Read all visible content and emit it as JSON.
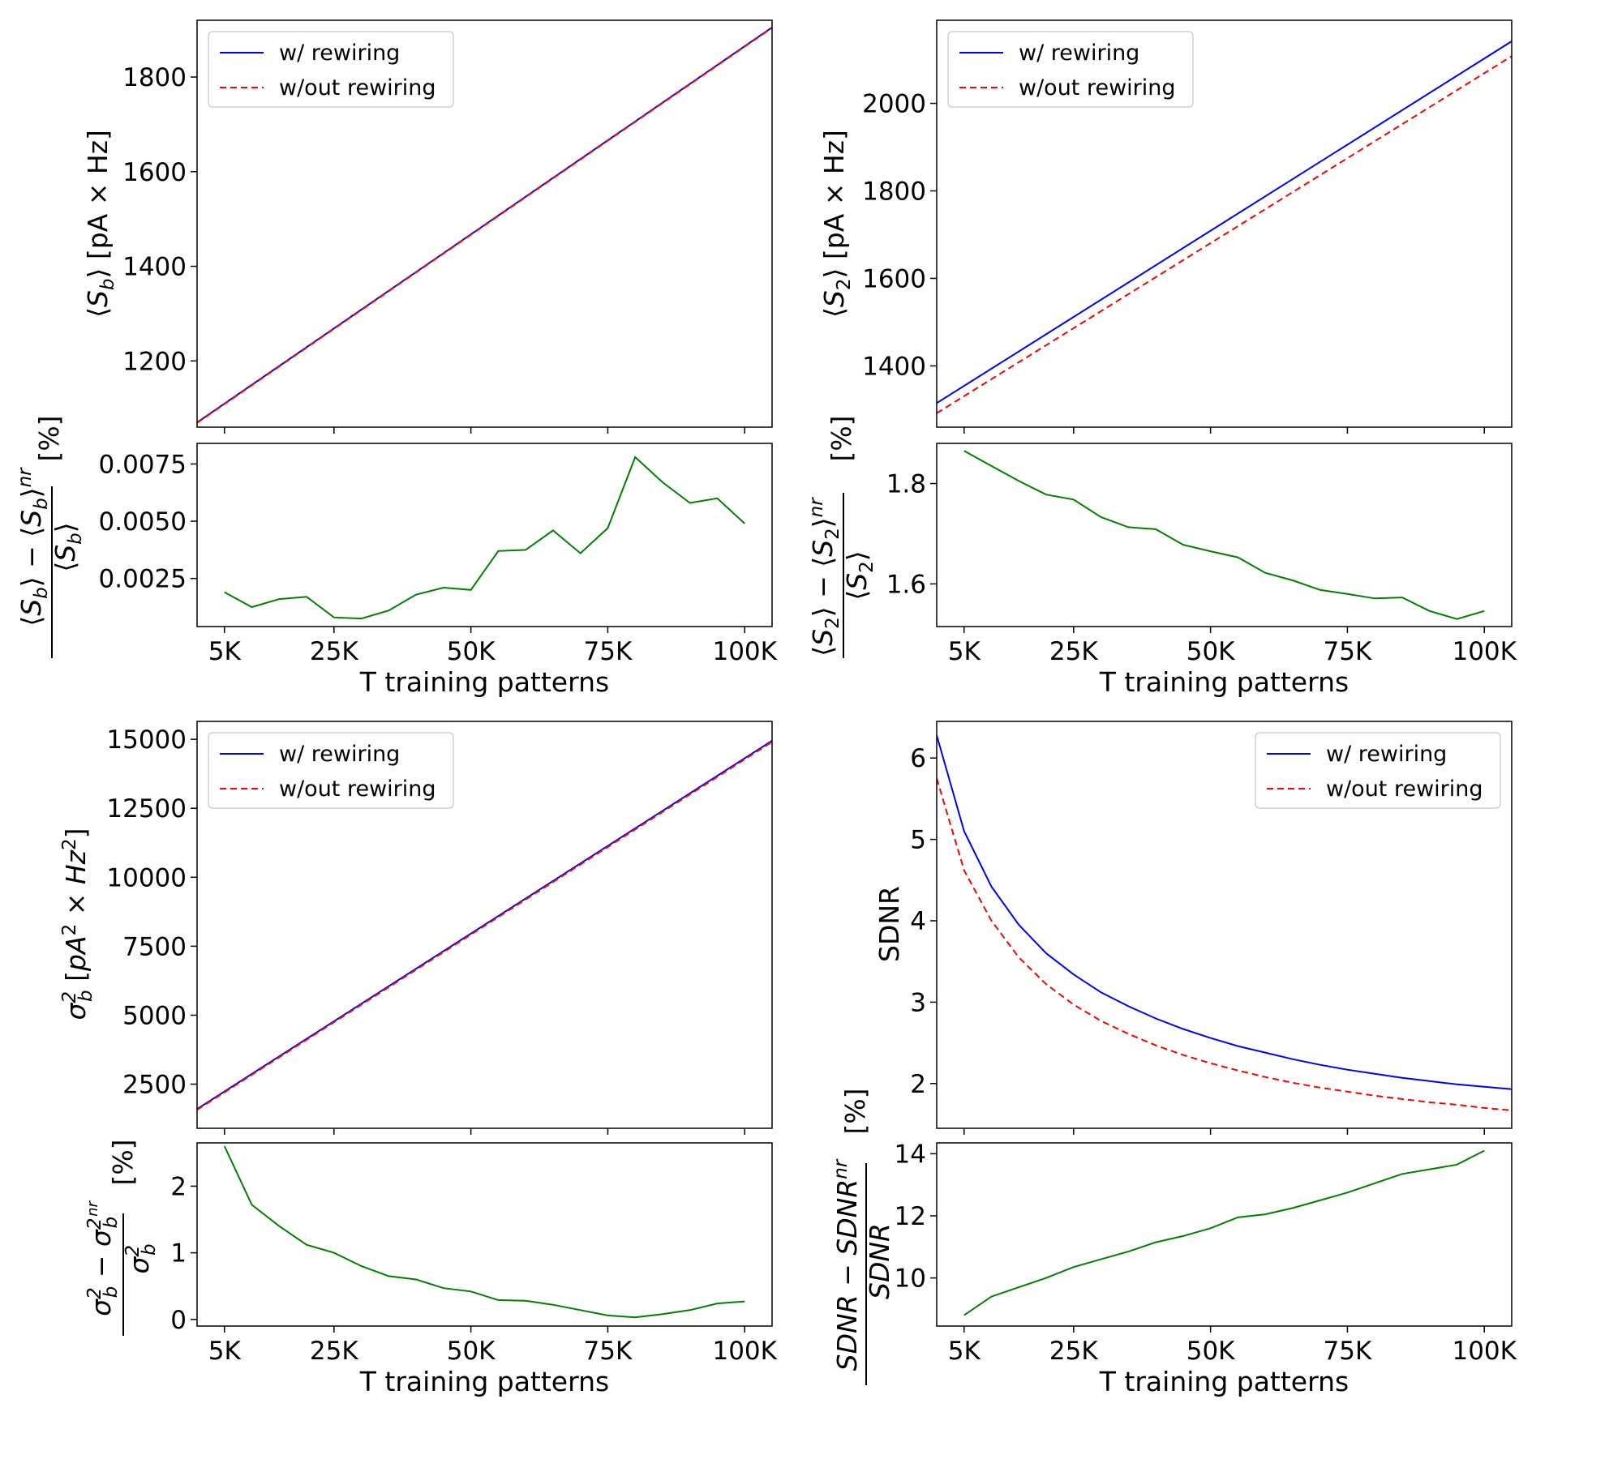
{
  "colors": {
    "rewiring": "#0000ff",
    "no_rewiring": "#ff0000",
    "diff": "#008000"
  },
  "chart_data": [
    {
      "id": "sb-top",
      "type": "line",
      "ylabel": "⟨S_b⟩ [pA × Hz]",
      "xlim": [
        0,
        105000
      ],
      "ylim": [
        1060,
        1920
      ],
      "yticks": [
        1200,
        1400,
        1600,
        1800
      ],
      "ytick_labels": [
        "1200",
        "1400",
        "1600",
        "1800"
      ],
      "legend": {
        "position": "top-left",
        "entries": [
          "w/ rewiring",
          "w/out rewiring"
        ]
      },
      "series": [
        {
          "name": "w/ rewiring",
          "style": "solid",
          "x": [
            0,
            105000
          ],
          "y": [
            1070,
            1905
          ]
        },
        {
          "name": "w/out rewiring",
          "style": "dashed",
          "x": [
            0,
            105000
          ],
          "y": [
            1069,
            1904
          ]
        }
      ]
    },
    {
      "id": "sb-bottom",
      "type": "line",
      "ylabel": "(⟨S_b⟩ − ⟨S_b⟩^nr) / ⟨S_b⟩   [%]",
      "xlabel": "T training patterns",
      "xlim": [
        0,
        105000
      ],
      "ylim": [
        0.0004,
        0.0084
      ],
      "yticks": [
        0.0025,
        0.005,
        0.0075
      ],
      "ytick_labels": [
        "0.0025",
        "0.0050",
        "0.0075"
      ],
      "xticks": [
        5000,
        25000,
        50000,
        75000,
        100000
      ],
      "xtick_labels": [
        "5K",
        "25K",
        "50K",
        "75K",
        "100K"
      ],
      "series": [
        {
          "name": "difference",
          "style": "solid",
          "x": [
            5000,
            10000,
            15000,
            20000,
            25000,
            30000,
            35000,
            40000,
            45000,
            50000,
            55000,
            60000,
            65000,
            70000,
            75000,
            80000,
            85000,
            90000,
            95000,
            100000
          ],
          "y": [
            0.0019,
            0.00125,
            0.0016,
            0.0017,
            0.0008,
            0.00075,
            0.0011,
            0.0018,
            0.0021,
            0.002,
            0.0037,
            0.00375,
            0.0046,
            0.0036,
            0.0047,
            0.0078,
            0.0067,
            0.0058,
            0.006,
            0.0049
          ]
        }
      ]
    },
    {
      "id": "s2-top",
      "type": "line",
      "ylabel": "⟨S_2⟩ [pA × Hz]",
      "xlim": [
        0,
        105000
      ],
      "ylim": [
        1260,
        2190
      ],
      "yticks": [
        1400,
        1600,
        1800,
        2000
      ],
      "ytick_labels": [
        "1400",
        "1600",
        "1800",
        "2000"
      ],
      "legend": {
        "position": "top-left",
        "entries": [
          "w/ rewiring",
          "w/out rewiring"
        ]
      },
      "series": [
        {
          "name": "w/ rewiring",
          "style": "solid",
          "x": [
            0,
            105000
          ],
          "y": [
            1315,
            2142
          ]
        },
        {
          "name": "w/out rewiring",
          "style": "dashed",
          "x": [
            0,
            105000
          ],
          "y": [
            1292,
            2108
          ]
        }
      ]
    },
    {
      "id": "s2-bottom",
      "type": "line",
      "ylabel": "(⟨S_2⟩ − ⟨S_2⟩^nr) / ⟨S_2⟩   [%]",
      "xlabel": "T training patterns",
      "xlim": [
        0,
        105000
      ],
      "ylim": [
        1.515,
        1.88
      ],
      "yticks": [
        1.6,
        1.8
      ],
      "ytick_labels": [
        "1.6",
        "1.8"
      ],
      "xticks": [
        5000,
        25000,
        50000,
        75000,
        100000
      ],
      "xtick_labels": [
        "5K",
        "25K",
        "50K",
        "75K",
        "100K"
      ],
      "series": [
        {
          "name": "difference",
          "style": "solid",
          "x": [
            5000,
            10000,
            15000,
            20000,
            25000,
            30000,
            35000,
            40000,
            45000,
            50000,
            55000,
            60000,
            65000,
            70000,
            75000,
            80000,
            85000,
            90000,
            95000,
            100000
          ],
          "y": [
            1.865,
            1.835,
            1.805,
            1.778,
            1.768,
            1.733,
            1.713,
            1.709,
            1.678,
            1.665,
            1.653,
            1.622,
            1.607,
            1.588,
            1.58,
            1.571,
            1.573,
            1.546,
            1.53,
            1.546
          ]
        }
      ]
    },
    {
      "id": "var-top",
      "type": "line",
      "ylabel": "σ_b² [pA² × Hz²]",
      "xlim": [
        0,
        105000
      ],
      "ylim": [
        900,
        15650
      ],
      "yticks": [
        2500,
        5000,
        7500,
        10000,
        12500,
        15000
      ],
      "ytick_labels": [
        "2500",
        "5000",
        "7500",
        "10000",
        "12500",
        "15000"
      ],
      "legend": {
        "position": "top-left",
        "entries": [
          "w/ rewiring",
          "w/out rewiring"
        ]
      },
      "series": [
        {
          "name": "w/ rewiring",
          "style": "solid",
          "x": [
            0,
            105000
          ],
          "y": [
            1600,
            14950
          ]
        },
        {
          "name": "w/out rewiring",
          "style": "dashed",
          "x": [
            0,
            105000
          ],
          "y": [
            1570,
            14910
          ]
        }
      ]
    },
    {
      "id": "var-bottom",
      "type": "line",
      "ylabel": "(σ_b² − σ_b²^nr) / σ_b²   [%]",
      "xlabel": "T training patterns",
      "xlim": [
        0,
        105000
      ],
      "ylim": [
        -0.1,
        2.65
      ],
      "yticks": [
        0,
        1,
        2
      ],
      "ytick_labels": [
        "0",
        "1",
        "2"
      ],
      "xticks": [
        5000,
        25000,
        50000,
        75000,
        100000
      ],
      "xtick_labels": [
        "5K",
        "25K",
        "50K",
        "75K",
        "100K"
      ],
      "series": [
        {
          "name": "difference",
          "style": "solid",
          "x": [
            5000,
            10000,
            15000,
            20000,
            25000,
            30000,
            35000,
            40000,
            45000,
            50000,
            55000,
            60000,
            65000,
            70000,
            75000,
            80000,
            85000,
            90000,
            95000,
            100000
          ],
          "y": [
            2.6,
            1.72,
            1.4,
            1.12,
            1.0,
            0.8,
            0.65,
            0.6,
            0.47,
            0.42,
            0.29,
            0.28,
            0.22,
            0.14,
            0.06,
            0.03,
            0.08,
            0.14,
            0.24,
            0.27
          ]
        }
      ]
    },
    {
      "id": "sdnr-top",
      "type": "line",
      "ylabel": "SDNR",
      "xlim": [
        0,
        105000
      ],
      "ylim": [
        1.45,
        6.45
      ],
      "yticks": [
        2,
        3,
        4,
        5,
        6
      ],
      "ytick_labels": [
        "2",
        "3",
        "4",
        "5",
        "6"
      ],
      "legend": {
        "position": "top-right",
        "entries": [
          "w/ rewiring",
          "w/out rewiring"
        ]
      },
      "series": [
        {
          "name": "w/ rewiring",
          "style": "solid",
          "x": [
            0,
            5000,
            10000,
            15000,
            20000,
            25000,
            30000,
            35000,
            40000,
            45000,
            50000,
            55000,
            60000,
            65000,
            70000,
            75000,
            80000,
            85000,
            90000,
            95000,
            100000,
            105000
          ],
          "y": [
            6.28,
            5.1,
            4.42,
            3.95,
            3.6,
            3.34,
            3.12,
            2.95,
            2.8,
            2.67,
            2.56,
            2.46,
            2.38,
            2.3,
            2.23,
            2.17,
            2.12,
            2.07,
            2.03,
            1.99,
            1.96,
            1.93
          ]
        },
        {
          "name": "w/out rewiring",
          "style": "dashed",
          "x": [
            0,
            5000,
            10000,
            15000,
            20000,
            25000,
            30000,
            35000,
            40000,
            45000,
            50000,
            55000,
            60000,
            65000,
            70000,
            75000,
            80000,
            85000,
            90000,
            95000,
            100000,
            105000
          ],
          "y": [
            5.75,
            4.62,
            4.0,
            3.55,
            3.22,
            2.97,
            2.77,
            2.61,
            2.47,
            2.35,
            2.25,
            2.16,
            2.08,
            2.01,
            1.95,
            1.9,
            1.85,
            1.81,
            1.77,
            1.74,
            1.7,
            1.67
          ]
        }
      ]
    },
    {
      "id": "sdnr-bottom",
      "type": "line",
      "ylabel": "(SDNR − SDNR^nr) / SDNR   [%]",
      "xlabel": "T training patterns",
      "xlim": [
        0,
        105000
      ],
      "ylim": [
        8.45,
        14.35
      ],
      "yticks": [
        10,
        12,
        14
      ],
      "ytick_labels": [
        "10",
        "12",
        "14"
      ],
      "xticks": [
        5000,
        25000,
        50000,
        75000,
        100000
      ],
      "xtick_labels": [
        "5K",
        "25K",
        "50K",
        "75K",
        "100K"
      ],
      "series": [
        {
          "name": "difference",
          "style": "solid",
          "x": [
            5000,
            10000,
            15000,
            20000,
            25000,
            30000,
            35000,
            40000,
            45000,
            50000,
            55000,
            60000,
            65000,
            70000,
            75000,
            80000,
            85000,
            90000,
            95000,
            100000
          ],
          "y": [
            8.8,
            9.4,
            9.7,
            10.0,
            10.35,
            10.6,
            10.85,
            11.15,
            11.35,
            11.6,
            11.95,
            12.05,
            12.25,
            12.5,
            12.75,
            13.05,
            13.35,
            13.5,
            13.65,
            14.1
          ]
        }
      ]
    }
  ]
}
